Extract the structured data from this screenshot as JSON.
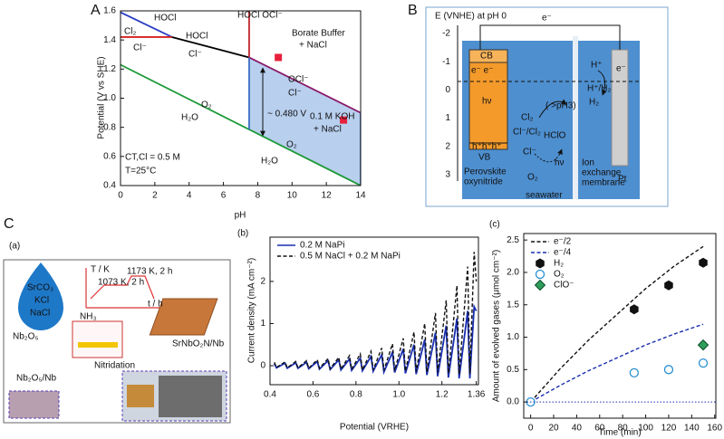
{
  "panel_labels": [
    "A",
    "B",
    "C",
    "(a)",
    "(b)",
    "(c)"
  ],
  "chart_data": [
    {
      "type": "line",
      "xlabel": "pH",
      "ylabel": "Potential (V vs SHE)",
      "xlim": [
        0,
        14
      ],
      "ylim": [
        0.4,
        1.6
      ],
      "xticks": [
        0,
        2,
        4,
        6,
        8,
        10,
        12,
        14
      ],
      "yticks": [
        0.4,
        0.6,
        0.8,
        {
          "value": 1,
          "label": "1.0"
        },
        1.2,
        1.4,
        1.6
      ],
      "series": [
        {
          "color": "#b8cfee",
          "fill": true,
          "x": [
            7.5,
            14,
            14,
            7.5
          ],
          "values": [
            1.28,
            0.9,
            0.4,
            0.785
          ]
        },
        {
          "color": "#2b3fc4",
          "x": [
            0,
            3
          ],
          "values": [
            1.59,
            1.42
          ]
        },
        {
          "color": "#d62020",
          "x": [
            0,
            3
          ],
          "values": [
            1.42,
            1.42
          ]
        },
        {
          "color": "#000000",
          "x": [
            3,
            7.5
          ],
          "values": [
            1.42,
            1.28
          ]
        },
        {
          "color": "#c0262c",
          "x": [
            7.5,
            7.5
          ],
          "values": [
            1.28,
            1.6
          ]
        },
        {
          "color": "#8b1a6b",
          "x": [
            7.5,
            14
          ],
          "values": [
            1.28,
            0.9
          ]
        },
        {
          "color": "#1e9a3a",
          "x": [
            0,
            14
          ],
          "values": [
            1.23,
            0.4
          ]
        },
        {
          "color": "#3b6fc4",
          "x": [
            7.5,
            7.5,
            null,
            14,
            14
          ],
          "values": [
            0.785,
            1.28,
            null,
            0.4,
            0.9
          ]
        },
        {
          "color": "#e8203c",
          "marker": "square",
          "x": [
            9.2,
            13
          ],
          "values": [
            1.28,
            0.85
          ]
        }
      ],
      "annotations": [
        {
          "text": "Cl₂",
          "color": "#000000"
        },
        {
          "text": "HOCl",
          "color": "#000000"
        },
        {
          "text": "Cl⁻",
          "color": "#000000"
        },
        {
          "text": "HOCl",
          "color": "#000000"
        },
        {
          "text": "Cl⁻",
          "color": "#000000"
        },
        {
          "text": "HOCl OCl⁻",
          "color": "#000000"
        },
        {
          "text": "Borate Buffer",
          "color": "#e8203c"
        },
        {
          "text": "+ NaCl",
          "color": "#e8203c"
        },
        {
          "text": "OCl⁻",
          "color": "#000000"
        },
        {
          "text": "Cl⁻",
          "color": "#000000"
        },
        {
          "text": "~ 0.480 V",
          "color": "#000000"
        },
        {
          "text": "O₂",
          "color": "#000000"
        },
        {
          "text": "H₂O",
          "color": "#000000"
        },
        {
          "text": "0.1 M KOH",
          "color": "#e8203c"
        },
        {
          "text": "+ NaCl",
          "color": "#e8203c"
        },
        {
          "text": "O₂",
          "color": "#000000"
        },
        {
          "text": "H₂O",
          "color": "#000000"
        },
        {
          "text": "CT,Cl = 0.5 M",
          "color": "#000000"
        },
        {
          "text": "T=25°C",
          "color": "#000000"
        }
      ]
    },
    {
      "type": "line",
      "xlabel": "Potential (VRHE)",
      "ylabel": "Current density (mA cm⁻²)",
      "xlim": [
        0.4,
        1.37
      ],
      "ylim": [
        -0.45,
        3.05
      ],
      "xticks": [
        0.4,
        0.6,
        0.8,
        {
          "value": 1,
          "label": "1.0"
        },
        1.2,
        1.36
      ],
      "yticks": [
        0,
        1,
        2
      ],
      "legend": "upper left",
      "x": [
        0.42,
        0.43,
        0.47,
        0.48,
        0.52,
        0.53,
        0.57,
        0.58,
        0.62,
        0.63,
        0.67,
        0.68,
        0.72,
        0.73,
        0.77,
        0.78,
        0.82,
        0.83,
        0.87,
        0.88,
        0.92,
        0.93,
        0.97,
        0.98,
        1.02,
        1.03,
        1.07,
        1.08,
        1.12,
        1.13,
        1.17,
        1.18,
        1.22,
        1.23,
        1.27,
        1.28,
        1.32,
        1.33,
        1.35,
        1.36
      ],
      "series": [
        {
          "name": "0.2 M NaPi",
          "color": "#1a2fb0",
          "values": [
            0.05,
            -0.05,
            0.06,
            -0.06,
            0.07,
            -0.06,
            0.08,
            -0.07,
            0.1,
            -0.08,
            0.12,
            -0.09,
            0.14,
            -0.1,
            0.16,
            -0.11,
            0.18,
            -0.12,
            0.22,
            -0.13,
            0.26,
            -0.15,
            0.32,
            -0.16,
            0.4,
            -0.18,
            0.5,
            -0.2,
            0.62,
            -0.22,
            0.78,
            -0.25,
            0.95,
            -0.28,
            1.12,
            -0.3,
            1.3,
            -0.3,
            1.4,
            1.3
          ]
        },
        {
          "name": "0.5 M NaCl + 0.2 M NaPi",
          "color": "#111111",
          "dash": true,
          "values": [
            0.08,
            -0.04,
            0.09,
            -0.05,
            0.1,
            -0.05,
            0.12,
            -0.06,
            0.14,
            -0.06,
            0.17,
            -0.07,
            0.2,
            -0.08,
            0.24,
            -0.09,
            0.28,
            -0.1,
            0.34,
            -0.1,
            0.42,
            -0.11,
            0.52,
            -0.12,
            0.65,
            -0.13,
            0.8,
            -0.14,
            1.0,
            -0.15,
            1.25,
            -0.16,
            1.55,
            -0.18,
            1.9,
            -0.2,
            2.35,
            -0.2,
            2.7,
            2.0
          ]
        }
      ]
    },
    {
      "type": "line",
      "xlabel": "Time (min)",
      "ylabel": "Amount of evolved gases (μmol cm⁻²)",
      "xlim": [
        -6,
        161
      ],
      "ylim": [
        -0.25,
        2.6
      ],
      "xticks": [
        0,
        20,
        40,
        60,
        80,
        100,
        120,
        140,
        160
      ],
      "yticks": [
        {
          "value": 0,
          "label": "0.0"
        },
        0.5,
        {
          "value": 1,
          "label": "1.0"
        },
        1.5,
        {
          "value": 2,
          "label": "2.0"
        },
        2.5
      ],
      "legend": "upper left",
      "hline": 0,
      "series": [
        {
          "name": "e⁻/2",
          "color": "#111111",
          "dash": true,
          "x": [
            0,
            25,
            50,
            75,
            100,
            125,
            150
          ],
          "values": [
            0,
            0.5,
            0.95,
            1.35,
            1.75,
            2.1,
            2.4
          ]
        },
        {
          "name": "e⁻/4",
          "color": "#1a2fb0",
          "dash": true,
          "x": [
            0,
            25,
            50,
            75,
            100,
            125,
            150
          ],
          "values": [
            0,
            0.25,
            0.48,
            0.68,
            0.88,
            1.05,
            1.2
          ]
        },
        {
          "name": "H₂",
          "color": "#111111",
          "marker": "hexagon",
          "x": [
            90,
            120,
            150
          ],
          "values": [
            1.43,
            1.8,
            2.15
          ]
        },
        {
          "name": "O₂",
          "color": "#2a8fd0",
          "marker": "circle",
          "open": true,
          "x": [
            0,
            90,
            120,
            150
          ],
          "values": [
            0,
            0.45,
            0.5,
            0.6
          ]
        },
        {
          "name": "ClO⁻",
          "color": "#2e9e5a",
          "marker": "diamond",
          "x": [
            150
          ],
          "values": [
            0.88
          ]
        }
      ]
    }
  ],
  "panel_b": {
    "title": "E (VNHE) at pH 0",
    "scale": [
      -2,
      -1,
      0,
      1,
      2,
      3
    ],
    "labels": [
      "CB",
      "e⁻  e⁻",
      "hν",
      "h⁺h⁺h⁺",
      "VB",
      "Perovskite",
      "oxynitride",
      "Cl₂",
      "( >pH3)",
      "Cl⁻/Cl₂",
      "HClO",
      "Cl⁻",
      "hν",
      "O₂",
      "seawater",
      "Ion",
      "exchange",
      "membrane",
      "Pt",
      "H⁺",
      "e⁻",
      "H⁺/H₂",
      "H₂",
      "e⁻"
    ]
  },
  "panel_ca": {
    "labels": [
      "SrCO₃",
      "KCl",
      "NaCl",
      "NH₃",
      "Nitridation",
      "Nb₂O₅",
      "Nb₂O₅/Nb",
      "T / K",
      "1073 K, 2 h",
      "1173 K, 2 h",
      "t / h",
      "SrNbO₂N/Nb"
    ]
  }
}
